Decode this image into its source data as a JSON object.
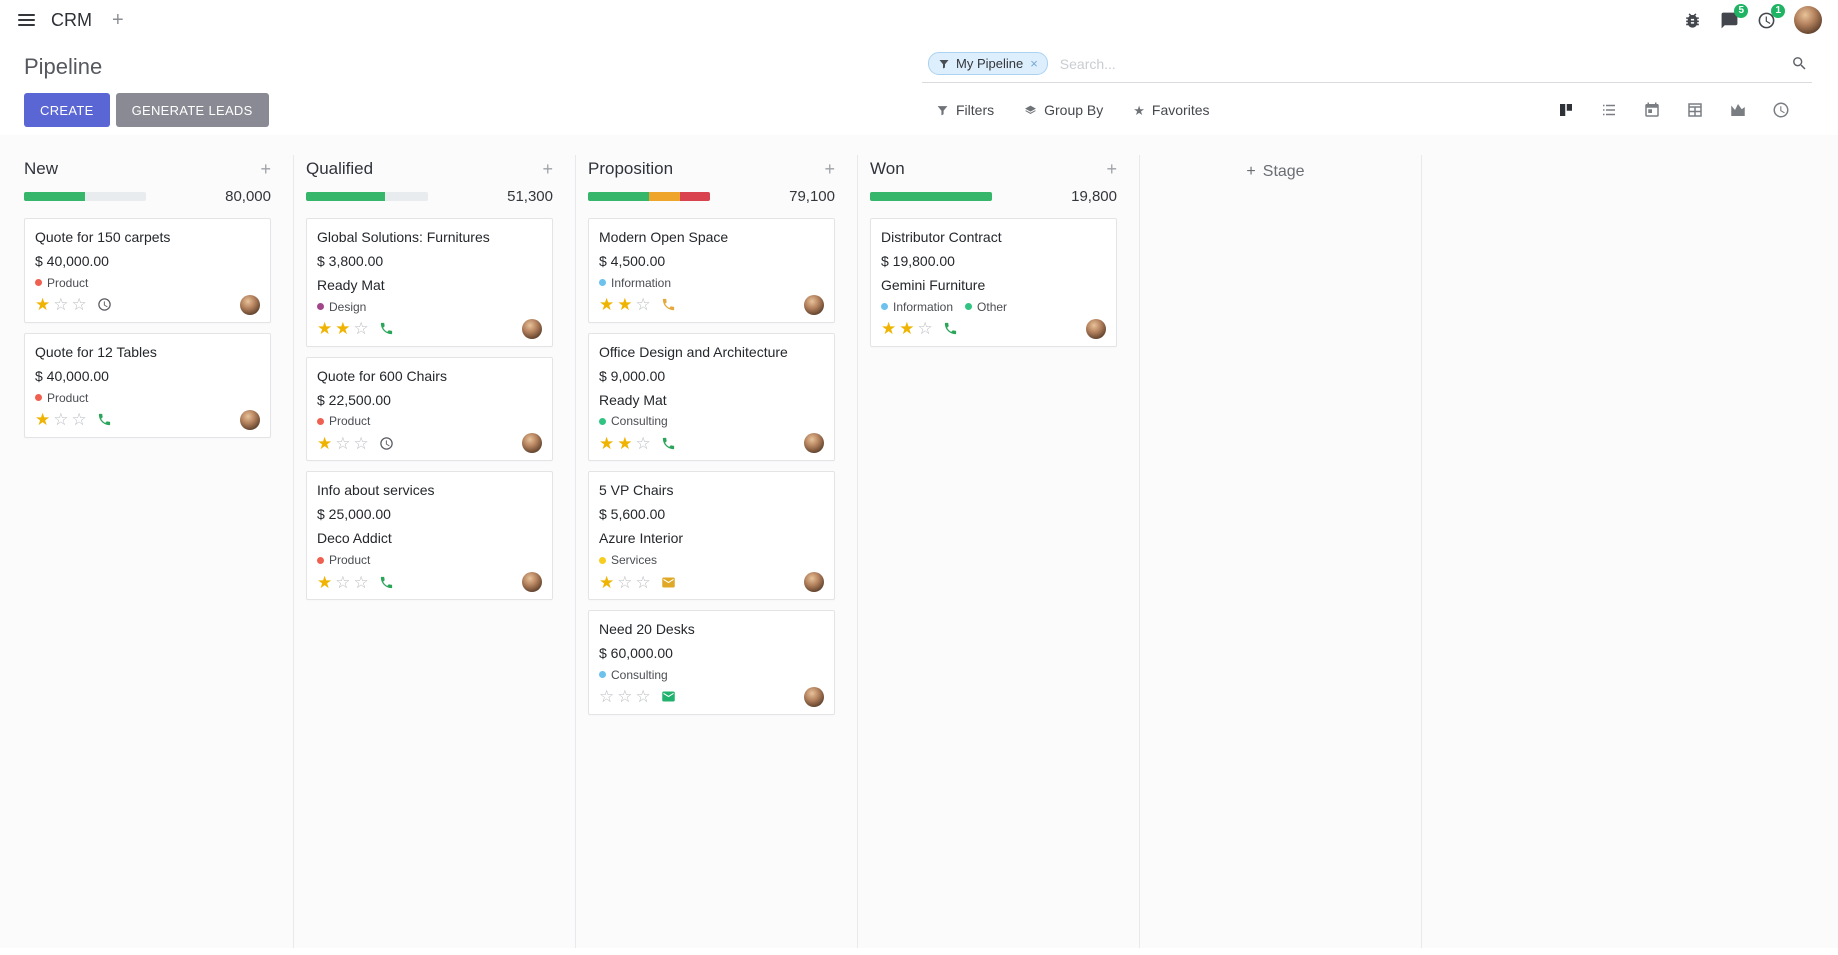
{
  "icons": {
    "plus": "+",
    "close": "×",
    "star_filled": "★",
    "star_empty": "☆"
  },
  "colors": {
    "primary": "#5a66d4",
    "secondary": "#8a8a94",
    "progress_green": "#35b66b",
    "progress_yellow": "#eea52a",
    "progress_red": "#d9434e",
    "badge_green": "#1fb463",
    "star_filled": "#efb301"
  },
  "navbar": {
    "app_name": "CRM",
    "messages_badge": "5",
    "activities_badge": "1"
  },
  "control_panel": {
    "title": "Pipeline",
    "buttons": {
      "create": "CREATE",
      "generate_leads": "GENERATE LEADS"
    },
    "search": {
      "facet": "My Pipeline",
      "placeholder": "Search..."
    },
    "search_buttons": {
      "filters": "Filters",
      "group_by": "Group By",
      "favorites": "Favorites"
    },
    "views": [
      "kanban",
      "list",
      "calendar",
      "pivot",
      "graph",
      "activity"
    ],
    "active_view": "kanban"
  },
  "kanban": {
    "add_stage": "Stage",
    "columns": [
      {
        "title": "New",
        "counter": "80,000",
        "progress": [
          {
            "color": "#35b66b",
            "pct": 50
          }
        ],
        "cards": [
          {
            "title": "Quote for 150 carpets",
            "amount": "$ 40,000.00",
            "tags": [
              {
                "label": "Product",
                "color": "#f06050"
              }
            ],
            "stars": 1,
            "activity": {
              "type": "clock",
              "color": "#585b60"
            }
          },
          {
            "title": "Quote for 12 Tables",
            "amount": "$ 40,000.00",
            "tags": [
              {
                "label": "Product",
                "color": "#f06050"
              }
            ],
            "stars": 1,
            "activity": {
              "type": "phone",
              "color": "#2aa55a"
            }
          }
        ]
      },
      {
        "title": "Qualified",
        "counter": "51,300",
        "progress": [
          {
            "color": "#35b66b",
            "pct": 65
          }
        ],
        "cards": [
          {
            "title": "Global Solutions: Furnitures",
            "amount": "$ 3,800.00",
            "partner": "Ready Mat",
            "tags": [
              {
                "label": "Design",
                "color": "#a24689"
              }
            ],
            "stars": 2,
            "activity": {
              "type": "phone",
              "color": "#2aa55a"
            }
          },
          {
            "title": "Quote for 600 Chairs",
            "amount": "$ 22,500.00",
            "tags": [
              {
                "label": "Product",
                "color": "#f06050"
              }
            ],
            "stars": 1,
            "activity": {
              "type": "clock",
              "color": "#585b60"
            }
          },
          {
            "title": "Info about services",
            "amount": "$ 25,000.00",
            "partner": "Deco Addict",
            "tags": [
              {
                "label": "Product",
                "color": "#f06050"
              }
            ],
            "stars": 1,
            "activity": {
              "type": "phone",
              "color": "#2aa55a"
            }
          }
        ]
      },
      {
        "title": "Proposition",
        "counter": "79,100",
        "progress": [
          {
            "color": "#35b66b",
            "pct": 50
          },
          {
            "color": "#eea52a",
            "pct": 25
          },
          {
            "color": "#d9434e",
            "pct": 25
          }
        ],
        "cards": [
          {
            "title": "Modern Open Space",
            "amount": "$ 4,500.00",
            "tags": [
              {
                "label": "Information",
                "color": "#6cc1ed"
              }
            ],
            "stars": 2,
            "activity": {
              "type": "phone",
              "color": "#e4a93c"
            }
          },
          {
            "title": "Office Design and Architecture",
            "amount": "$ 9,000.00",
            "partner": "Ready Mat",
            "tags": [
              {
                "label": "Consulting",
                "color": "#30c381"
              }
            ],
            "stars": 2,
            "activity": {
              "type": "phone",
              "color": "#2aa55a"
            }
          },
          {
            "title": "5 VP Chairs",
            "amount": "$ 5,600.00",
            "partner": "Azure Interior",
            "tags": [
              {
                "label": "Services",
                "color": "#f7cd1f"
              }
            ],
            "stars": 1,
            "activity": {
              "type": "envelope",
              "color": "#dfa826"
            }
          },
          {
            "title": "Need 20 Desks",
            "amount": "$ 60,000.00",
            "tags": [
              {
                "label": "Consulting",
                "color": "#6cc1ed"
              }
            ],
            "stars": 0,
            "activity": {
              "type": "envelope",
              "color": "#21b26e"
            }
          }
        ]
      },
      {
        "title": "Won",
        "counter": "19,800",
        "progress": [
          {
            "color": "#35b66b",
            "pct": 100
          }
        ],
        "cards": [
          {
            "title": "Distributor Contract",
            "amount": "$ 19,800.00",
            "partner": "Gemini Furniture",
            "tags": [
              {
                "label": "Information",
                "color": "#6cc1ed"
              },
              {
                "label": "Other",
                "color": "#30c381"
              }
            ],
            "stars": 2,
            "activity": {
              "type": "phone",
              "color": "#2aa55a"
            }
          }
        ]
      }
    ]
  }
}
